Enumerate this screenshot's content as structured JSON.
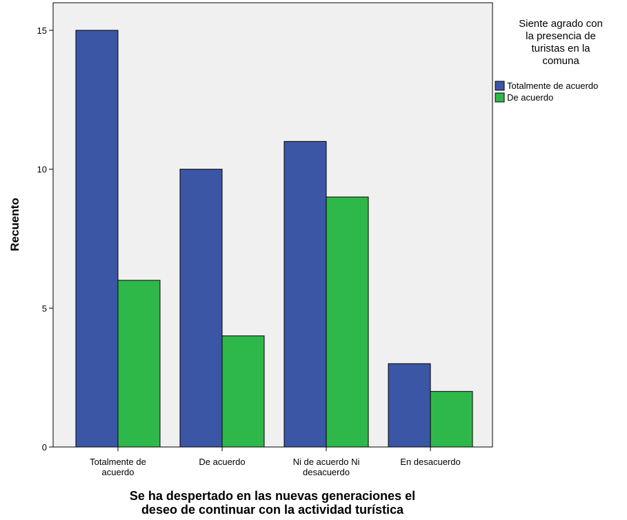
{
  "chart_data": {
    "type": "bar",
    "categories": [
      [
        "Totalmente de",
        "acuerdo"
      ],
      [
        "De acuerdo"
      ],
      [
        "Ni de acuerdo Ni",
        "desacuerdo"
      ],
      [
        "En desacuerdo"
      ]
    ],
    "series": [
      {
        "name": "Totalmente de acuerdo",
        "values": [
          15,
          10,
          11,
          3
        ],
        "color": "#3c56a6"
      },
      {
        "name": "De acuerdo",
        "values": [
          6,
          4,
          9,
          2
        ],
        "color": "#2fb84a"
      }
    ],
    "xlabel": [
      "Se ha despertado en las nuevas generaciones el",
      "deseo de continuar con la actividad turística"
    ],
    "ylabel": "Recuento",
    "ylim": [
      0,
      15
    ],
    "yticks": [
      0,
      5,
      10,
      15
    ],
    "legend": {
      "title": [
        "Siente agrado con",
        "la presencia de",
        "turistas en la",
        "comuna"
      ],
      "position": "right"
    },
    "plot_background": "#f0f0f0",
    "grid": false
  }
}
